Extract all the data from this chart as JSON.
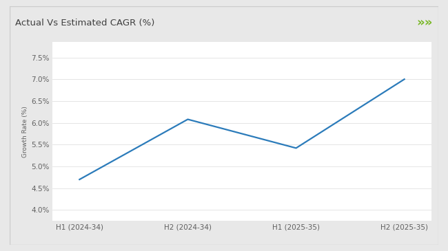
{
  "title": "Actual Vs Estimated CAGR (%)",
  "categories": [
    "H1 (2024-34)",
    "H2 (2024-34)",
    "H1 (2025-35)",
    "H2 (2025-35)"
  ],
  "values": [
    4.7,
    6.08,
    5.42,
    7.0
  ],
  "line_color": "#2b7bba",
  "ylabel": "Growth Rate (%)",
  "yticks": [
    4.0,
    4.5,
    5.0,
    5.5,
    6.0,
    6.5,
    7.0,
    7.5
  ],
  "ytick_labels": [
    "4.0%",
    "4.5%",
    "5.0%",
    "5.5%",
    "6.0%",
    "6.5%",
    "7.0%",
    "7.5%"
  ],
  "ylim": [
    3.75,
    7.85
  ],
  "outer_bg": "#e8e8e8",
  "card_bg": "#ffffff",
  "plot_bg": "#ffffff",
  "title_fontsize": 9.5,
  "ylabel_fontsize": 6.5,
  "tick_fontsize": 7.5,
  "header_bar_color": "#8dc63f",
  "title_color": "#404040",
  "tick_color": "#606060",
  "grid_color": "#e0e0e0",
  "line_width": 1.6,
  "chevron_color": "#7ab827",
  "chevron_text": "»»",
  "chevron_fontsize": 13,
  "border_color": "#cccccc"
}
